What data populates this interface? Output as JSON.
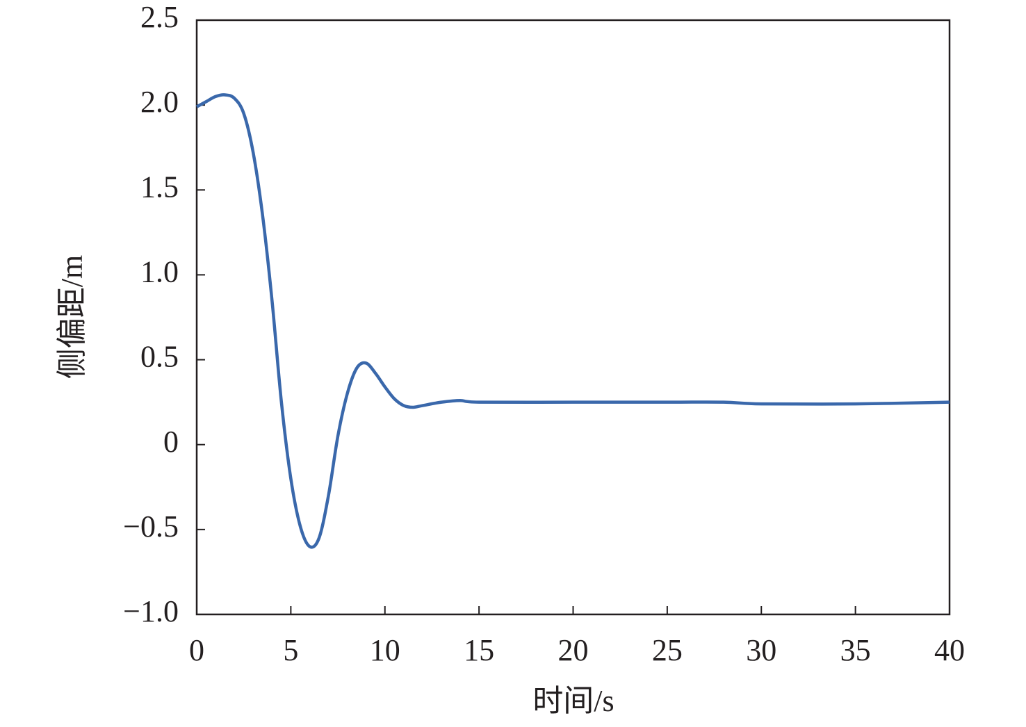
{
  "chart_data": {
    "type": "line",
    "x_label": "时间/s",
    "y_label": "侧偏距/m",
    "x": [
      0,
      0.5,
      1,
      1.5,
      2,
      2.5,
      3,
      3.5,
      4,
      4.5,
      5,
      5.5,
      6,
      6.5,
      7,
      7.5,
      8,
      8.5,
      9,
      9.5,
      10,
      10.5,
      11,
      11.5,
      12,
      13,
      14,
      15,
      20,
      25,
      28,
      30,
      35,
      40
    ],
    "series": [
      {
        "color": "#3a68ab",
        "values": [
          1.99,
          2.02,
          2.05,
          2.06,
          2.04,
          1.95,
          1.72,
          1.35,
          0.85,
          0.25,
          -0.2,
          -0.48,
          -0.6,
          -0.55,
          -0.3,
          0.05,
          0.3,
          0.45,
          0.48,
          0.42,
          0.34,
          0.27,
          0.23,
          0.22,
          0.23,
          0.25,
          0.26,
          0.25,
          0.25,
          0.25,
          0.25,
          0.24,
          0.24,
          0.25
        ]
      }
    ],
    "xlim": [
      0,
      40
    ],
    "xticks": [
      0,
      5,
      10,
      15,
      20,
      25,
      30,
      35,
      40
    ],
    "ylim": [
      -1,
      2.5
    ],
    "yticks": [
      {
        "value": -1,
        "label": "−1.0"
      },
      {
        "value": -0.5,
        "label": "−0.5"
      },
      0,
      0.5,
      {
        "value": 1,
        "label": "1.0"
      },
      1.5,
      {
        "value": 2,
        "label": "2.0"
      },
      2.5
    ],
    "grid": false
  }
}
